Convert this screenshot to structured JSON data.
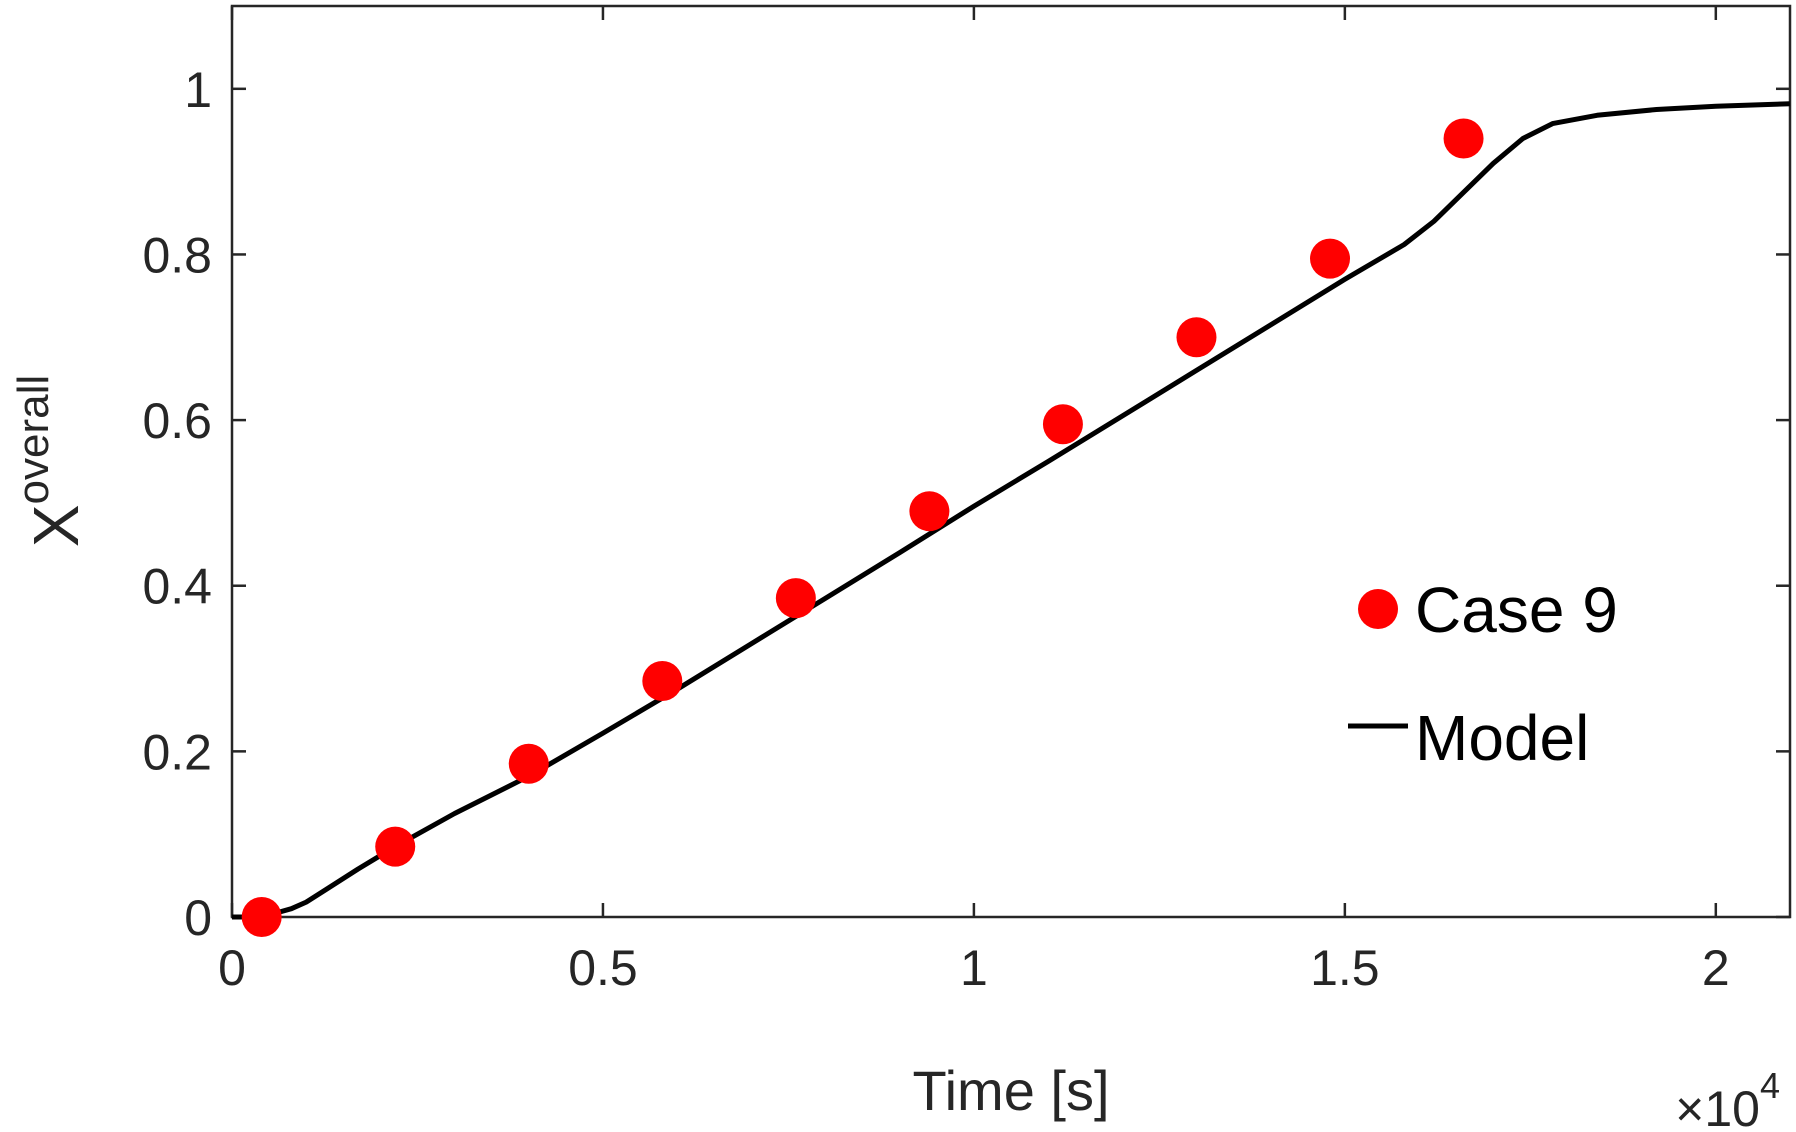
{
  "chart_data": {
    "type": "scatter",
    "title": "",
    "xlabel": "Time [s]",
    "ylabel": "X",
    "ylabel_superscript": "overall",
    "x_multiplier_label": "×10",
    "x_multiplier_exponent": "4",
    "x_scale": 10000,
    "xlim": [
      0,
      2.1
    ],
    "ylim": [
      0,
      1.1
    ],
    "x_ticks": [
      0,
      0.5,
      1,
      1.5,
      2
    ],
    "x_tick_labels": [
      "0",
      "0.5",
      "1",
      "1.5",
      "2"
    ],
    "y_ticks": [
      0,
      0.2,
      0.4,
      0.6,
      0.8,
      1
    ],
    "y_tick_labels": [
      "0",
      "0.2",
      "0.4",
      "0.6",
      "0.8",
      "1"
    ],
    "grid": false,
    "legend_position": "bottom-right",
    "series": [
      {
        "name": "Case 9",
        "type": "scatter",
        "color": "#ff0000",
        "x": [
          0.04,
          0.22,
          0.4,
          0.58,
          0.76,
          0.94,
          1.12,
          1.3,
          1.48,
          1.66
        ],
        "y": [
          0.0,
          0.085,
          0.185,
          0.285,
          0.385,
          0.49,
          0.595,
          0.7,
          0.795,
          0.94
        ]
      },
      {
        "name": "Model",
        "type": "line",
        "color": "#000000",
        "x": [
          0,
          0.03,
          0.06,
          0.08,
          0.1,
          0.13,
          0.17,
          0.22,
          0.3,
          0.4,
          0.5,
          0.6,
          0.7,
          0.8,
          0.9,
          1.0,
          1.1,
          1.2,
          1.3,
          1.4,
          1.5,
          1.58,
          1.62,
          1.66,
          1.7,
          1.74,
          1.78,
          1.84,
          1.92,
          2.0,
          2.1
        ],
        "y": [
          0,
          0.0,
          0.005,
          0.01,
          0.018,
          0.035,
          0.058,
          0.085,
          0.125,
          0.17,
          0.222,
          0.275,
          0.33,
          0.385,
          0.44,
          0.496,
          0.55,
          0.605,
          0.66,
          0.715,
          0.77,
          0.812,
          0.84,
          0.875,
          0.91,
          0.94,
          0.958,
          0.968,
          0.975,
          0.979,
          0.982
        ]
      }
    ]
  }
}
